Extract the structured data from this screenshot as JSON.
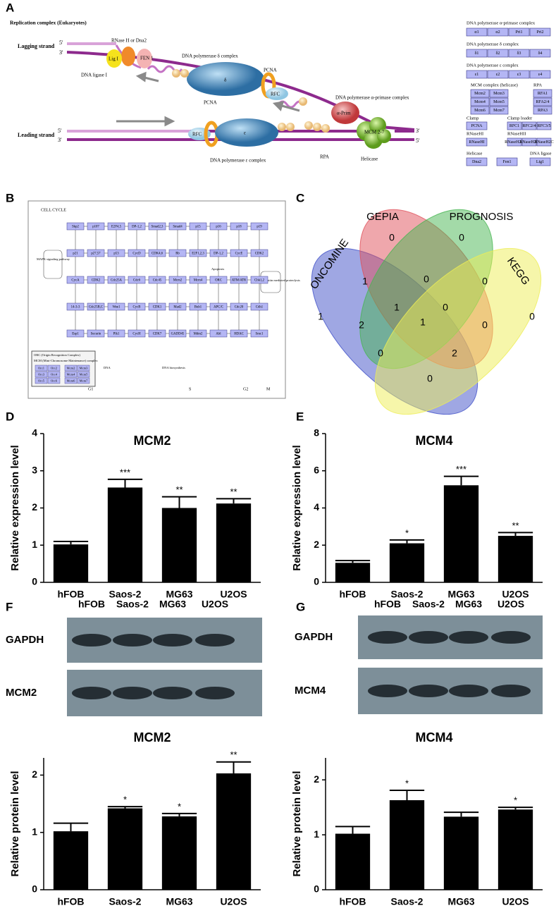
{
  "panel_labels": [
    "A",
    "B",
    "C",
    "D",
    "E",
    "F",
    "G"
  ],
  "replication": {
    "title": "Replication complex (Eukaryotes)",
    "lagging": "Lagging strand",
    "leading": "Leading strand",
    "five_prime": "5'",
    "three_prime": "3'",
    "parts": [
      "RNase H or Dna2",
      "Lig I",
      "FEN 1",
      "DNA ligase I",
      "DNA polymerase δ complex",
      "δ",
      "PCNA",
      "RFC",
      "DNA polymerase α-primase complex",
      "α-Prim",
      "MCM 2-7",
      "PCNA",
      "RFC",
      "ε",
      "DNA polymerase ε complex",
      "RPA",
      "Helicase"
    ]
  },
  "legend_groups": [
    {
      "title": "DNA polymerase α-primase complex",
      "items": [
        "α1",
        "α2",
        "Pri1",
        "Pri2"
      ]
    },
    {
      "title": "DNA polymerase δ complex",
      "items": [
        "δ1",
        "δ2",
        "δ3",
        "δ4"
      ]
    },
    {
      "title": "DNA polymerase ε complex",
      "items": [
        "ε1",
        "ε2",
        "ε3",
        "ε4"
      ]
    },
    {
      "title": "MCM complex (helicase)",
      "items": [
        "Mcm2",
        "Mcm3",
        {
          "label": "Mcm4",
          "color": "#e8283a"
        },
        "Mcm5",
        "Mcm6",
        "Mcm7"
      ]
    },
    {
      "title": "RPA",
      "items": [
        "RFA1",
        "RFA2/4",
        "RPA3"
      ]
    },
    {
      "title": "Clamp",
      "items": [
        "PCNA"
      ]
    },
    {
      "title": "Clamp loader",
      "items": [
        "RFC1",
        "RFC2/4",
        "RFC3/5"
      ]
    },
    {
      "title": "RNaseHI",
      "items": [
        "RNaseHI"
      ]
    },
    {
      "title": "RNaseHII",
      "items": [
        "RNaseH2A",
        "RNaseH2B",
        "RNaseH2C"
      ]
    },
    {
      "title": "Helicase",
      "items": [
        "Dna2"
      ]
    },
    {
      "items": [
        "Fen1"
      ]
    },
    {
      "title": "DNA ligase",
      "items": [
        "Lig1"
      ]
    }
  ],
  "cell_cycle": {
    "title": "CELL CYCLE",
    "phases": [
      "G1",
      "S",
      "G2",
      "M"
    ],
    "notes": [
      "MAPK signaling pathway",
      "Apoptosis",
      "Ubiquitin mediated proteolysis",
      "DNA",
      "DNA biosynthesis",
      "ORC (Origin Recognition Complex)",
      "MCM (Mini-Chromosome Maintenance) complex"
    ],
    "nodes": [
      "Skp2",
      "p107",
      "E2F4,5",
      "DP-1,2",
      "Smad2,3",
      "Smad4",
      "p15",
      "p16",
      "p18",
      "p19",
      "p21",
      "p27,57",
      "p53",
      "CycD",
      "CDK4,6",
      "Rb",
      "E2F1,2,3",
      "DP-1,2",
      "CycE",
      "CDK2",
      "CycA",
      "CDK2",
      "Cdc25A",
      "Cdc6",
      "Cdc45",
      "Mcm2",
      {
        "label": "Mcm4",
        "color": "#e8283a"
      },
      "ORC",
      "ATM/ATR",
      "Chk1,2",
      "14-3-3",
      "Cdc25B,C",
      "Wee1",
      "CycB",
      "CDK1",
      "Mad2",
      "Bub1",
      "APC/C",
      "Cdc20",
      "Cdh1",
      "Esp1",
      "Securin",
      "Plk1",
      "CycH",
      "CDK7",
      "GADD45",
      "Mdm2",
      "Abl",
      "HDAC",
      "Smc1"
    ],
    "complex": [
      "Orc1",
      "Orc2",
      "Orc3",
      "Orc4",
      "Orc5",
      "Orc6",
      "Mcm2",
      "Mcm3",
      {
        "label": "Mcm4",
        "color": "#e8283a"
      },
      "Mcm5",
      "Mcm6",
      "Mcm7"
    ]
  },
  "blots": [
    {
      "lanes": [
        "hFOB",
        "Saos-2",
        "MG63",
        "U2OS"
      ],
      "rows": [
        "GAPDH",
        "MCM2"
      ]
    },
    {
      "lanes": [
        "hFOB",
        "Saos-2",
        "MG63",
        "U2OS"
      ],
      "rows": [
        "GAPDH",
        "MCM4"
      ]
    }
  ],
  "chart_data": [
    {
      "type": "venn",
      "sets": [
        {
          "name": "ONCOMINE",
          "color": "#3f4fc8"
        },
        {
          "name": "GEPIA",
          "color": "#e0505a"
        },
        {
          "name": "PROGNOSIS",
          "color": "#47b552"
        },
        {
          "name": "KEGG",
          "color": "#eeee55"
        }
      ],
      "values": [
        0,
        0,
        1,
        0,
        0,
        1,
        1,
        0,
        0,
        2,
        1,
        0,
        0,
        2,
        0
      ]
    },
    {
      "type": "bar",
      "title": "MCM2",
      "ylabel": "Relative expression level",
      "categories": [
        "hFOB",
        "Saos-2",
        "MG63",
        "U2OS"
      ],
      "values": [
        1.02,
        2.55,
        2.0,
        2.12
      ],
      "errors": [
        0.08,
        0.22,
        0.3,
        0.13
      ],
      "annotations": [
        null,
        "***",
        "**",
        "**"
      ],
      "color": "#000000",
      "ylim": [
        0,
        4
      ],
      "yticks": [
        0,
        1,
        2,
        3,
        4
      ]
    },
    {
      "type": "bar",
      "title": "MCM4",
      "ylabel": "Relative expression level",
      "categories": [
        "hFOB",
        "Saos-2",
        "MG63",
        "U2OS"
      ],
      "values": [
        1.05,
        2.1,
        5.22,
        2.5
      ],
      "errors": [
        0.12,
        0.18,
        0.48,
        0.18
      ],
      "annotations": [
        null,
        "*",
        "***",
        "**"
      ],
      "color": "#000000",
      "ylim": [
        0,
        8
      ],
      "yticks": [
        0,
        2,
        4,
        6,
        8
      ]
    },
    {
      "type": "bar",
      "title": "MCM2",
      "ylabel": "Relative protein level",
      "categories": [
        "hFOB",
        "Saos-2",
        "MG63",
        "U2OS"
      ],
      "values": [
        1.02,
        1.42,
        1.28,
        2.03
      ],
      "errors": [
        0.14,
        0.03,
        0.05,
        0.2
      ],
      "annotations": [
        null,
        "*",
        "*",
        "**"
      ],
      "color": "#000000",
      "ylim": [
        0,
        2.3
      ],
      "yticks": [
        0,
        1,
        2
      ]
    },
    {
      "type": "bar",
      "title": "MCM4",
      "ylabel": "Relative protein level",
      "categories": [
        "hFOB",
        "Saos-2",
        "MG63",
        "U2OS"
      ],
      "values": [
        1.02,
        1.63,
        1.33,
        1.46
      ],
      "errors": [
        0.13,
        0.18,
        0.08,
        0.04
      ],
      "annotations": [
        null,
        "*",
        null,
        "*"
      ],
      "color": "#000000",
      "ylim": [
        0,
        2.4
      ],
      "yticks": [
        0,
        1,
        2
      ]
    }
  ]
}
